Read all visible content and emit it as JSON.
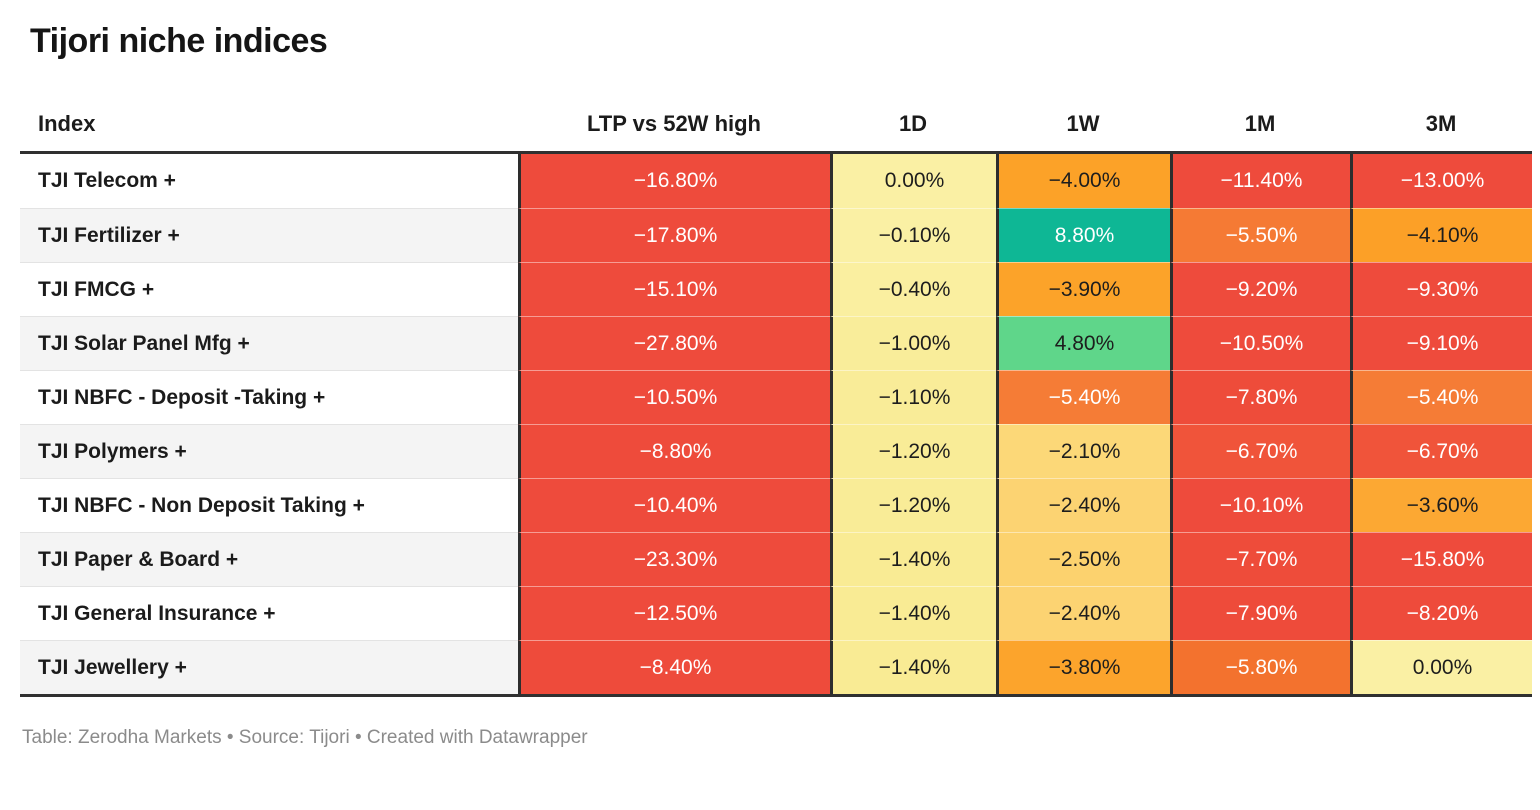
{
  "title": "Tijori niche indices",
  "columns": [
    "Index",
    "LTP vs 52W high",
    "1D",
    "1W",
    "1M",
    "3M"
  ],
  "footer": "Table: Zerodha Markets • Source: Tijori • Created with Datawrapper",
  "palette": {
    "strong_negative": "#ee4b3c",
    "negative": "#f3722e",
    "mild_negative": "#fca228",
    "near_zero": "#faf0a4",
    "positive": "#5fd68a",
    "strong_positive": "#0eb795",
    "text_dark": "#1d1d1d",
    "text_light": "#ffffff",
    "border_dark": "#2d2d2d"
  },
  "rows": [
    {
      "name": "TJI Telecom +",
      "cells": [
        {
          "v": "−16.80%",
          "bg": "#ee4b3c",
          "fg": "#ffffff"
        },
        {
          "v": "0.00%",
          "bg": "#faf0a4",
          "fg": "#1d1d1d"
        },
        {
          "v": "−4.00%",
          "bg": "#fca228",
          "fg": "#1d1d1d"
        },
        {
          "v": "−11.40%",
          "bg": "#ee4b3c",
          "fg": "#ffffff"
        },
        {
          "v": "−13.00%",
          "bg": "#ee4b3c",
          "fg": "#ffffff"
        }
      ]
    },
    {
      "name": "TJI Fertilizer +",
      "cells": [
        {
          "v": "−17.80%",
          "bg": "#ee4b3c",
          "fg": "#ffffff"
        },
        {
          "v": "−0.10%",
          "bg": "#faf0a4",
          "fg": "#1d1d1d"
        },
        {
          "v": "8.80%",
          "bg": "#0eb795",
          "fg": "#ffffff"
        },
        {
          "v": "−5.50%",
          "bg": "#f57a34",
          "fg": "#ffffff"
        },
        {
          "v": "−4.10%",
          "bg": "#fca027",
          "fg": "#1d1d1d"
        }
      ]
    },
    {
      "name": "TJI FMCG +",
      "cells": [
        {
          "v": "−15.10%",
          "bg": "#ee4b3c",
          "fg": "#ffffff"
        },
        {
          "v": "−0.40%",
          "bg": "#faefa0",
          "fg": "#1d1d1d"
        },
        {
          "v": "−3.90%",
          "bg": "#fca329",
          "fg": "#1d1d1d"
        },
        {
          "v": "−9.20%",
          "bg": "#ee4b3c",
          "fg": "#ffffff"
        },
        {
          "v": "−9.30%",
          "bg": "#ee4b3c",
          "fg": "#ffffff"
        }
      ]
    },
    {
      "name": "TJI Solar Panel Mfg +",
      "cells": [
        {
          "v": "−27.80%",
          "bg": "#ee4b3c",
          "fg": "#ffffff"
        },
        {
          "v": "−1.00%",
          "bg": "#f9ed9a",
          "fg": "#1d1d1d"
        },
        {
          "v": "4.80%",
          "bg": "#5fd68a",
          "fg": "#1d1d1d"
        },
        {
          "v": "−10.50%",
          "bg": "#ee4b3c",
          "fg": "#ffffff"
        },
        {
          "v": "−9.10%",
          "bg": "#ee4b3c",
          "fg": "#ffffff"
        }
      ]
    },
    {
      "name": "TJI NBFC - Deposit -Taking +",
      "cells": [
        {
          "v": "−10.50%",
          "bg": "#ee4b3c",
          "fg": "#ffffff"
        },
        {
          "v": "−1.10%",
          "bg": "#f9ec98",
          "fg": "#1d1d1d"
        },
        {
          "v": "−5.40%",
          "bg": "#f57c36",
          "fg": "#ffffff"
        },
        {
          "v": "−7.80%",
          "bg": "#ee4c3a",
          "fg": "#ffffff"
        },
        {
          "v": "−5.40%",
          "bg": "#f57c36",
          "fg": "#ffffff"
        }
      ]
    },
    {
      "name": "TJI Polymers +",
      "cells": [
        {
          "v": "−8.80%",
          "bg": "#ee4b3b",
          "fg": "#ffffff"
        },
        {
          "v": "−1.20%",
          "bg": "#f9ec97",
          "fg": "#1d1d1d"
        },
        {
          "v": "−2.10%",
          "bg": "#fcd878",
          "fg": "#1d1d1d"
        },
        {
          "v": "−6.70%",
          "bg": "#f0543a",
          "fg": "#ffffff"
        },
        {
          "v": "−6.70%",
          "bg": "#f0543a",
          "fg": "#ffffff"
        }
      ]
    },
    {
      "name": "TJI NBFC - Non Deposit Taking +",
      "cells": [
        {
          "v": "−10.40%",
          "bg": "#ee4b3c",
          "fg": "#ffffff"
        },
        {
          "v": "−1.20%",
          "bg": "#f9ec97",
          "fg": "#1d1d1d"
        },
        {
          "v": "−2.40%",
          "bg": "#fcd372",
          "fg": "#1d1d1d"
        },
        {
          "v": "−10.10%",
          "bg": "#ee4b3c",
          "fg": "#ffffff"
        },
        {
          "v": "−3.60%",
          "bg": "#fca833",
          "fg": "#1d1d1d"
        }
      ]
    },
    {
      "name": "TJI Paper & Board +",
      "cells": [
        {
          "v": "−23.30%",
          "bg": "#ee4b3c",
          "fg": "#ffffff"
        },
        {
          "v": "−1.40%",
          "bg": "#f9eb94",
          "fg": "#1d1d1d"
        },
        {
          "v": "−2.50%",
          "bg": "#fcd26e",
          "fg": "#1d1d1d"
        },
        {
          "v": "−7.70%",
          "bg": "#ee4c3a",
          "fg": "#ffffff"
        },
        {
          "v": "−15.80%",
          "bg": "#ee4b3c",
          "fg": "#ffffff"
        }
      ]
    },
    {
      "name": "TJI General Insurance +",
      "cells": [
        {
          "v": "−12.50%",
          "bg": "#ee4b3c",
          "fg": "#ffffff"
        },
        {
          "v": "−1.40%",
          "bg": "#f9eb94",
          "fg": "#1d1d1d"
        },
        {
          "v": "−2.40%",
          "bg": "#fcd372",
          "fg": "#1d1d1d"
        },
        {
          "v": "−7.90%",
          "bg": "#ee4b3a",
          "fg": "#ffffff"
        },
        {
          "v": "−8.20%",
          "bg": "#ee4b3b",
          "fg": "#ffffff"
        }
      ]
    },
    {
      "name": "TJI Jewellery +",
      "cells": [
        {
          "v": "−8.40%",
          "bg": "#ee4b3b",
          "fg": "#ffffff"
        },
        {
          "v": "−1.40%",
          "bg": "#f9eb94",
          "fg": "#1d1d1d"
        },
        {
          "v": "−3.80%",
          "bg": "#fca42c",
          "fg": "#1d1d1d"
        },
        {
          "v": "−5.80%",
          "bg": "#f3722e",
          "fg": "#ffffff"
        },
        {
          "v": "0.00%",
          "bg": "#faf0a4",
          "fg": "#1d1d1d"
        }
      ]
    }
  ],
  "chart_data": {
    "type": "table",
    "title": "Tijori niche indices",
    "columns": [
      "Index",
      "LTP vs 52W high",
      "1D",
      "1W",
      "1M",
      "3M"
    ],
    "unit": "%",
    "heatmap": true,
    "color_scale": "diverging red-yellow-green, red for negative, green for positive",
    "rows": [
      {
        "index": "TJI Telecom +",
        "ltp_vs_52w_high": -16.8,
        "d1": 0.0,
        "w1": -4.0,
        "m1": -11.4,
        "m3": -13.0
      },
      {
        "index": "TJI Fertilizer +",
        "ltp_vs_52w_high": -17.8,
        "d1": -0.1,
        "w1": 8.8,
        "m1": -5.5,
        "m3": -4.1
      },
      {
        "index": "TJI FMCG +",
        "ltp_vs_52w_high": -15.1,
        "d1": -0.4,
        "w1": -3.9,
        "m1": -9.2,
        "m3": -9.3
      },
      {
        "index": "TJI Solar Panel Mfg +",
        "ltp_vs_52w_high": -27.8,
        "d1": -1.0,
        "w1": 4.8,
        "m1": -10.5,
        "m3": -9.1
      },
      {
        "index": "TJI NBFC - Deposit -Taking +",
        "ltp_vs_52w_high": -10.5,
        "d1": -1.1,
        "w1": -5.4,
        "m1": -7.8,
        "m3": -5.4
      },
      {
        "index": "TJI Polymers +",
        "ltp_vs_52w_high": -8.8,
        "d1": -1.2,
        "w1": -2.1,
        "m1": -6.7,
        "m3": -6.7
      },
      {
        "index": "TJI NBFC - Non Deposit Taking +",
        "ltp_vs_52w_high": -10.4,
        "d1": -1.2,
        "w1": -2.4,
        "m1": -10.1,
        "m3": -3.6
      },
      {
        "index": "TJI Paper & Board +",
        "ltp_vs_52w_high": -23.3,
        "d1": -1.4,
        "w1": -2.5,
        "m1": -7.7,
        "m3": -15.8
      },
      {
        "index": "TJI General Insurance +",
        "ltp_vs_52w_high": -12.5,
        "d1": -1.4,
        "w1": -2.4,
        "m1": -7.9,
        "m3": -8.2
      },
      {
        "index": "TJI Jewellery +",
        "ltp_vs_52w_high": -8.4,
        "d1": -1.4,
        "w1": -3.8,
        "m1": -5.8,
        "m3": 0.0
      }
    ]
  }
}
